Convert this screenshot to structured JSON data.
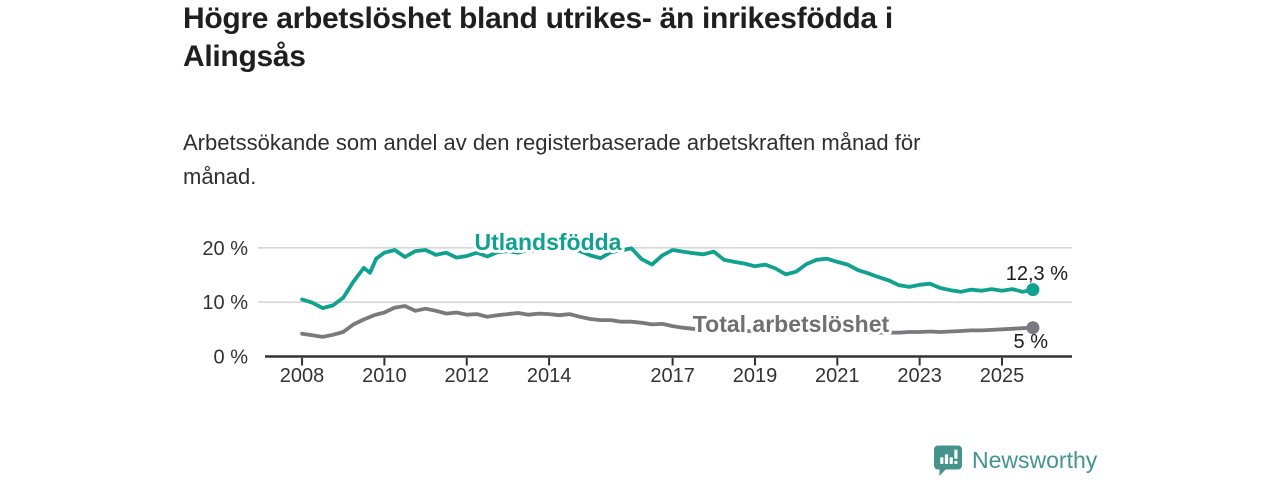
{
  "title": "Högre arbetslöshet bland utrikes- än inrikesfödda i\nAlingsås",
  "subtitle": "Arbetssökande som andel av den registerbaserade arbetskraften månad för\nmånad.",
  "chart_data": {
    "type": "line",
    "title": "Högre arbetslöshet bland utrikes- än inrikesfödda i Alingsås",
    "subtitle": "Arbetssökande som andel av den registerbaserade arbetskraften månad för månad.",
    "xlabel": "",
    "ylabel": "",
    "x_unit": "year",
    "x_range": [
      2007.1,
      2026.7
    ],
    "y_range": [
      0,
      22
    ],
    "grid": "horizontal",
    "x_ticks": [
      2008,
      2010,
      2012,
      2014,
      2017,
      2019,
      2021,
      2023,
      2025
    ],
    "y_ticks": [
      {
        "value": 0,
        "label": "0 %"
      },
      {
        "value": 10,
        "label": "10 %"
      },
      {
        "value": 20,
        "label": "20 %"
      }
    ],
    "series": [
      {
        "name": "Utlandsfödda",
        "color": "#10a191",
        "end_label": "12,3 %",
        "end_value": 12.3,
        "points": [
          [
            2008.0,
            10.5
          ],
          [
            2008.25,
            9.9
          ],
          [
            2008.5,
            8.9
          ],
          [
            2008.75,
            9.4
          ],
          [
            2009.0,
            10.8
          ],
          [
            2009.25,
            13.8
          ],
          [
            2009.5,
            16.3
          ],
          [
            2009.65,
            15.4
          ],
          [
            2009.8,
            18.0
          ],
          [
            2010.0,
            19.1
          ],
          [
            2010.25,
            19.6
          ],
          [
            2010.5,
            18.3
          ],
          [
            2010.75,
            19.4
          ],
          [
            2011.0,
            19.6
          ],
          [
            2011.25,
            18.7
          ],
          [
            2011.5,
            19.1
          ],
          [
            2011.75,
            18.2
          ],
          [
            2012.0,
            18.5
          ],
          [
            2012.25,
            19.1
          ],
          [
            2012.5,
            18.4
          ],
          [
            2012.75,
            19.2
          ],
          [
            2013.0,
            19.4
          ],
          [
            2013.25,
            19.1
          ],
          [
            2013.5,
            19.6
          ],
          [
            2013.75,
            19.4
          ],
          [
            2014.0,
            19.9
          ],
          [
            2014.25,
            19.7
          ],
          [
            2014.5,
            19.8
          ],
          [
            2014.75,
            19.4
          ],
          [
            2015.0,
            18.6
          ],
          [
            2015.25,
            18.1
          ],
          [
            2015.5,
            19.2
          ],
          [
            2015.75,
            19.5
          ],
          [
            2016.0,
            19.9
          ],
          [
            2016.25,
            17.9
          ],
          [
            2016.5,
            16.9
          ],
          [
            2016.75,
            18.6
          ],
          [
            2017.0,
            19.6
          ],
          [
            2017.25,
            19.3
          ],
          [
            2017.5,
            19.0
          ],
          [
            2017.75,
            18.8
          ],
          [
            2018.0,
            19.3
          ],
          [
            2018.25,
            17.8
          ],
          [
            2018.5,
            17.4
          ],
          [
            2018.75,
            17.1
          ],
          [
            2019.0,
            16.6
          ],
          [
            2019.25,
            16.9
          ],
          [
            2019.5,
            16.2
          ],
          [
            2019.75,
            15.1
          ],
          [
            2020.0,
            15.6
          ],
          [
            2020.25,
            17.0
          ],
          [
            2020.5,
            17.8
          ],
          [
            2020.75,
            18.0
          ],
          [
            2021.0,
            17.4
          ],
          [
            2021.25,
            16.9
          ],
          [
            2021.5,
            15.9
          ],
          [
            2021.75,
            15.3
          ],
          [
            2022.0,
            14.6
          ],
          [
            2022.25,
            14.0
          ],
          [
            2022.5,
            13.1
          ],
          [
            2022.75,
            12.8
          ],
          [
            2023.0,
            13.2
          ],
          [
            2023.25,
            13.4
          ],
          [
            2023.5,
            12.6
          ],
          [
            2023.75,
            12.2
          ],
          [
            2024.0,
            11.9
          ],
          [
            2024.25,
            12.3
          ],
          [
            2024.5,
            12.1
          ],
          [
            2024.75,
            12.4
          ],
          [
            2025.0,
            12.1
          ],
          [
            2025.25,
            12.4
          ],
          [
            2025.5,
            11.9
          ],
          [
            2025.75,
            12.3
          ]
        ]
      },
      {
        "name": "Total arbetslöshet",
        "color": "#7a7a7e",
        "end_label": "5 %",
        "end_value": 5,
        "points": [
          [
            2008.0,
            4.2
          ],
          [
            2008.25,
            3.9
          ],
          [
            2008.5,
            3.6
          ],
          [
            2008.75,
            4.0
          ],
          [
            2009.0,
            4.5
          ],
          [
            2009.25,
            5.9
          ],
          [
            2009.5,
            6.8
          ],
          [
            2009.75,
            7.6
          ],
          [
            2010.0,
            8.1
          ],
          [
            2010.25,
            9.0
          ],
          [
            2010.5,
            9.3
          ],
          [
            2010.75,
            8.4
          ],
          [
            2011.0,
            8.8
          ],
          [
            2011.25,
            8.4
          ],
          [
            2011.5,
            7.9
          ],
          [
            2011.75,
            8.1
          ],
          [
            2012.0,
            7.7
          ],
          [
            2012.25,
            7.8
          ],
          [
            2012.5,
            7.3
          ],
          [
            2012.75,
            7.6
          ],
          [
            2013.0,
            7.8
          ],
          [
            2013.25,
            8.0
          ],
          [
            2013.5,
            7.7
          ],
          [
            2013.75,
            7.9
          ],
          [
            2014.0,
            7.8
          ],
          [
            2014.25,
            7.6
          ],
          [
            2014.5,
            7.8
          ],
          [
            2014.75,
            7.3
          ],
          [
            2015.0,
            6.9
          ],
          [
            2015.25,
            6.7
          ],
          [
            2015.5,
            6.7
          ],
          [
            2015.75,
            6.4
          ],
          [
            2016.0,
            6.4
          ],
          [
            2016.25,
            6.2
          ],
          [
            2016.5,
            5.9
          ],
          [
            2016.75,
            6.0
          ],
          [
            2017.0,
            5.6
          ],
          [
            2017.25,
            5.3
          ],
          [
            2017.5,
            5.1
          ],
          [
            2017.75,
            5.0
          ],
          [
            2018.0,
            4.9
          ],
          [
            2018.25,
            4.8
          ],
          [
            2018.5,
            4.8
          ],
          [
            2018.75,
            4.7
          ],
          [
            2019.0,
            4.7
          ],
          [
            2019.25,
            4.6
          ],
          [
            2019.5,
            4.6
          ],
          [
            2019.75,
            4.7
          ],
          [
            2020.0,
            5.0
          ],
          [
            2020.25,
            5.6
          ],
          [
            2020.5,
            5.8
          ],
          [
            2020.75,
            5.6
          ],
          [
            2021.0,
            5.3
          ],
          [
            2021.25,
            5.0
          ],
          [
            2021.5,
            4.6
          ],
          [
            2021.75,
            4.5
          ],
          [
            2022.0,
            4.4
          ],
          [
            2022.25,
            4.4
          ],
          [
            2022.5,
            4.4
          ],
          [
            2022.75,
            4.5
          ],
          [
            2023.0,
            4.5
          ],
          [
            2023.25,
            4.6
          ],
          [
            2023.5,
            4.5
          ],
          [
            2023.75,
            4.6
          ],
          [
            2024.0,
            4.7
          ],
          [
            2024.25,
            4.8
          ],
          [
            2024.5,
            4.8
          ],
          [
            2024.75,
            4.9
          ],
          [
            2025.0,
            5.0
          ],
          [
            2025.25,
            5.1
          ],
          [
            2025.5,
            5.2
          ],
          [
            2025.75,
            5.3
          ]
        ]
      }
    ],
    "legend_position": "inline-labels"
  },
  "colors": {
    "title": "#1f1f1f",
    "subtitle": "#2f2f2f",
    "axis": "#333333",
    "gridline": "#d8d8d8",
    "series1": "#10a191",
    "series2": "#7a7a7e",
    "series2_label": "#707074",
    "end_label": "#1b1b1b",
    "brand": "#45948c"
  },
  "footer": {
    "brand": "Newsworthy"
  }
}
